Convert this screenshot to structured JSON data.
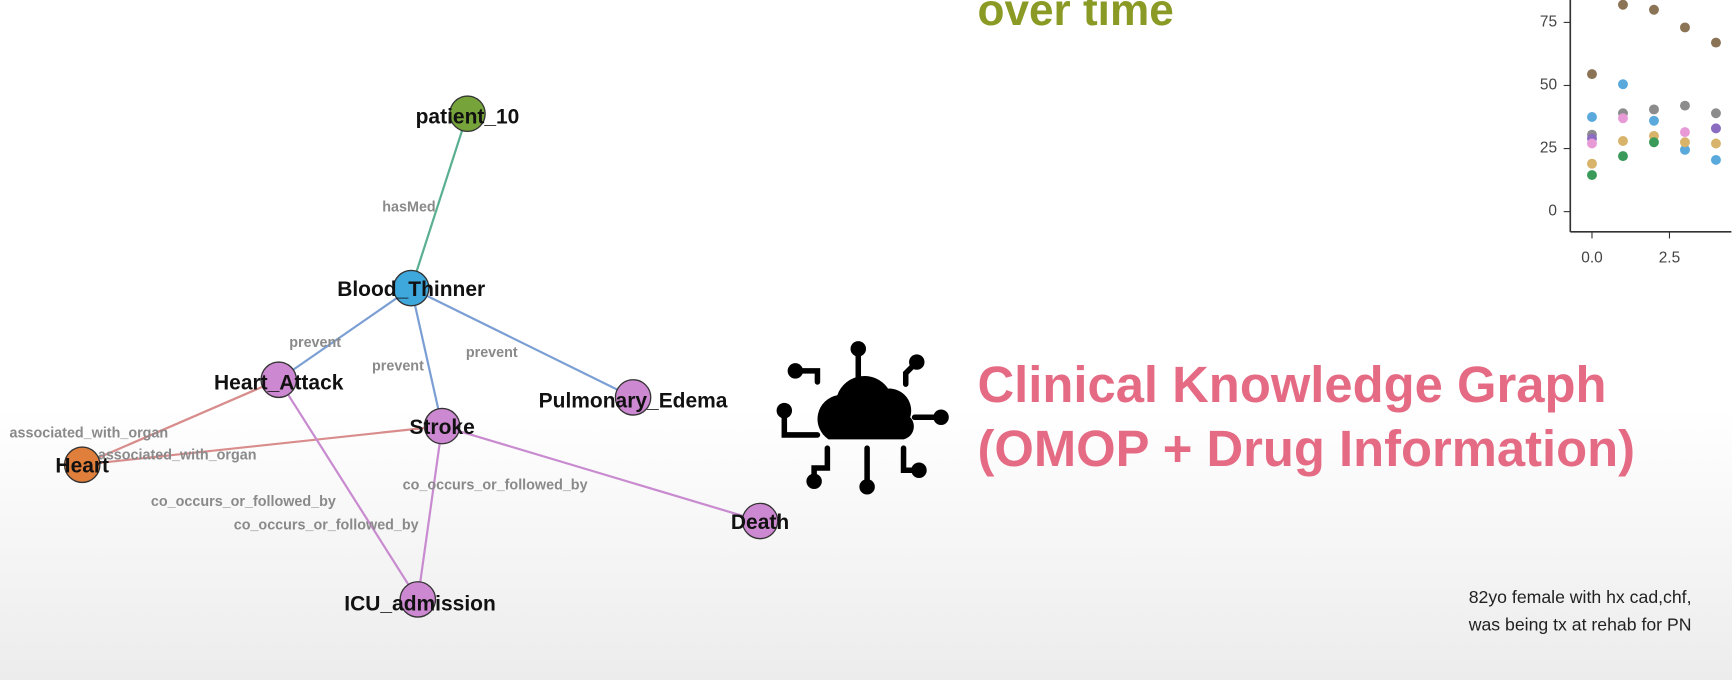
{
  "heading": {
    "subtitle": "over time",
    "title_line1": "Clinical Knowledge Graph",
    "title_line2": "(OMOP + Drug Information)",
    "subtitle_color": "#8a9a24",
    "title_color": "#e56b85"
  },
  "graph": {
    "nodes": [
      {
        "label": "patient_10",
        "color": "#76a33a"
      },
      {
        "label": "Blood_Thinner",
        "color": "#3ea7dc"
      },
      {
        "label": "Heart_Attack",
        "color": "#cc88d0"
      },
      {
        "label": "Stroke",
        "color": "#cc88d0"
      },
      {
        "label": "Pulmonary_Edema",
        "color": "#cc88d0"
      },
      {
        "label": "Heart",
        "color": "#e07f3c"
      },
      {
        "label": "Death",
        "color": "#cc88d0"
      },
      {
        "label": "ICU_admission",
        "color": "#cc88d0"
      }
    ],
    "edges": [
      {
        "source": 0,
        "target": 1,
        "label": "hasMed",
        "color": "#5aaf90"
      },
      {
        "source": 1,
        "target": 2,
        "label": "prevent",
        "color": "#7b9fd4"
      },
      {
        "source": 1,
        "target": 3,
        "label": "prevent",
        "color": "#7b9fd4"
      },
      {
        "source": 1,
        "target": 4,
        "label": "prevent",
        "color": "#7b9fd4"
      },
      {
        "source": 2,
        "target": 5,
        "label": "associated_with_organ",
        "color": "#d98c8c"
      },
      {
        "source": 3,
        "target": 5,
        "label": "associated_with_organ",
        "color": "#d98c8c"
      },
      {
        "source": 3,
        "target": 6,
        "label": "co_occurs_or_followed_by",
        "color": "#c98bd0"
      },
      {
        "source": 2,
        "target": 7,
        "label": "co_occurs_or_followed_by",
        "color": "#c98bd0"
      },
      {
        "source": 3,
        "target": 7,
        "label": "co_occurs_or_followed_by",
        "color": "#c98bd0"
      }
    ]
  },
  "chart_data": {
    "type": "scatter",
    "xlim": [
      -0.7,
      4.5
    ],
    "ylim": [
      -8,
      83
    ],
    "xticks": [
      {
        "value": 0,
        "label": "0.0"
      },
      2.5
    ],
    "yticks": [
      0,
      25,
      50,
      75
    ],
    "series": [
      {
        "color": "#8b7355",
        "x": [
          0,
          1,
          2,
          3,
          4
        ],
        "values": [
          54.5,
          82,
          80,
          73,
          67
        ]
      },
      {
        "color": "#5aa9dc",
        "x": [
          0,
          1,
          2,
          3,
          4
        ],
        "values": [
          37.5,
          50.5,
          36,
          24.5,
          20.5
        ]
      },
      {
        "color": "#8c8c8c",
        "x": [
          0,
          1,
          2,
          3,
          4
        ],
        "values": [
          30.5,
          39,
          40.5,
          42,
          39
        ]
      },
      {
        "color": "#8a6cc0",
        "x": [
          0,
          4
        ],
        "values": [
          29,
          33
        ]
      },
      {
        "color": "#e89ad6",
        "x": [
          0,
          1,
          3
        ],
        "values": [
          27,
          37,
          31.5
        ]
      },
      {
        "color": "#d8b36a",
        "x": [
          0,
          1,
          2,
          3,
          4
        ],
        "values": [
          19,
          28,
          30,
          27.5,
          27
        ]
      },
      {
        "color": "#3a9a5a",
        "x": [
          0,
          1,
          2
        ],
        "values": [
          14.5,
          22,
          27.5
        ]
      }
    ]
  },
  "note": {
    "line1": "82yo female with hx cad,chf,",
    "line2": "was being tx at rehab for PN"
  }
}
